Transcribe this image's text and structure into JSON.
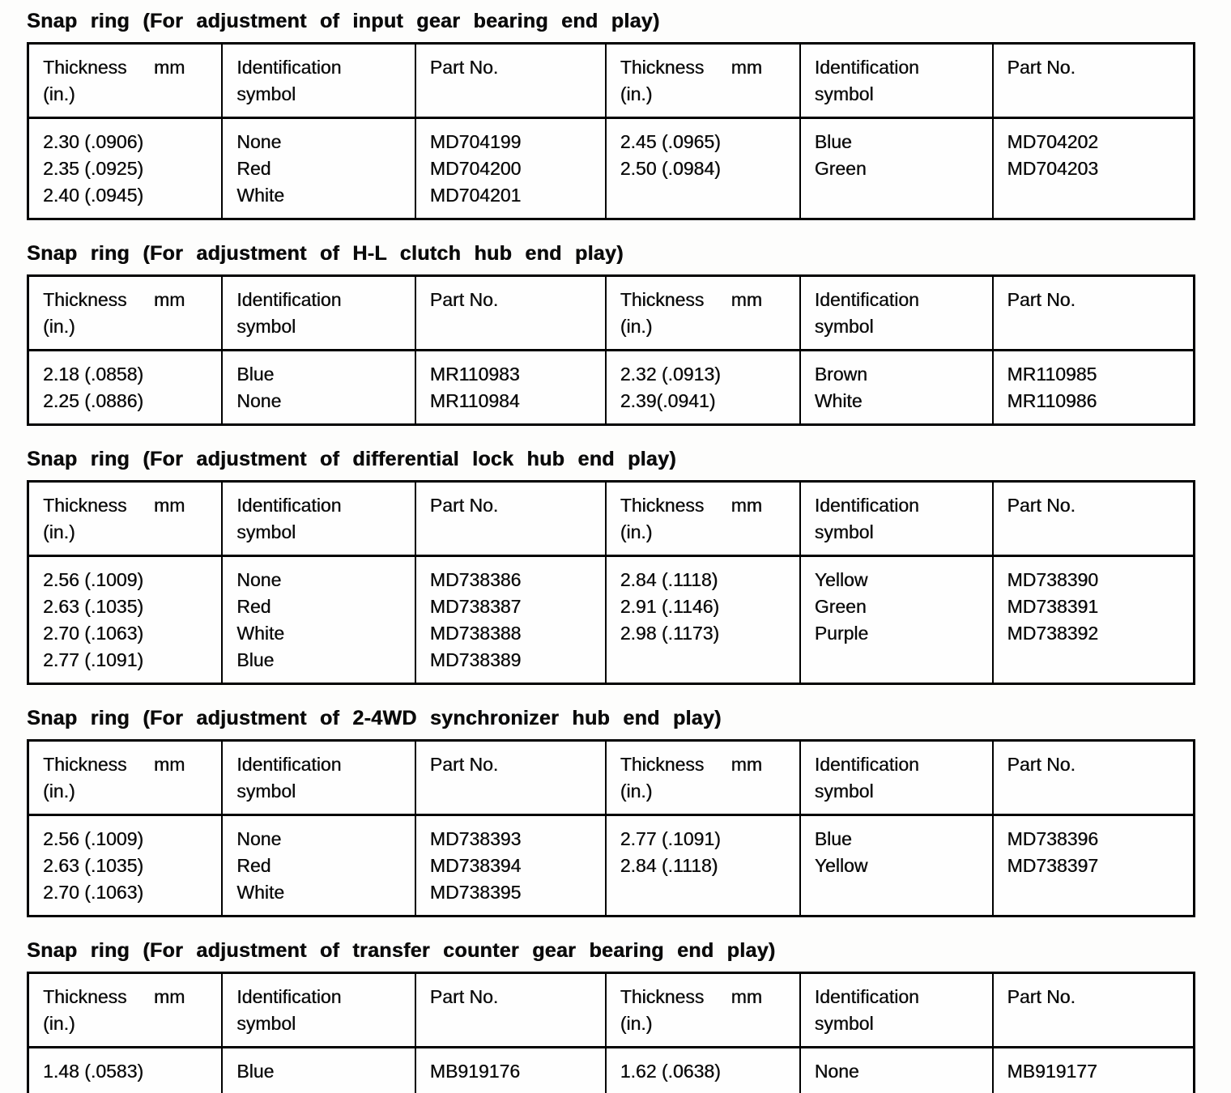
{
  "headers": {
    "thickness": [
      "Thickness mm",
      "(in.)"
    ],
    "symbol": [
      "Identification",
      "symbol"
    ],
    "part": [
      "Part No."
    ]
  },
  "sections": [
    {
      "title": "Snap ring (For adjustment of input gear bearing end play)",
      "left": {
        "thickness": [
          "2.30 (.0906)",
          "2.35 (.0925)",
          "2.40 (.0945)"
        ],
        "symbol": [
          "None",
          "Red",
          "White"
        ],
        "part": [
          "MD704199",
          "MD704200",
          "MD704201"
        ]
      },
      "right": {
        "thickness": [
          "2.45 (.0965)",
          "2.50 (.0984)"
        ],
        "symbol": [
          "Blue",
          "Green"
        ],
        "part": [
          "MD704202",
          "MD704203"
        ]
      }
    },
    {
      "title": "Snap ring (For adjustment of H-L clutch hub end play)",
      "left": {
        "thickness": [
          "2.18 (.0858)",
          "2.25 (.0886)"
        ],
        "symbol": [
          "Blue",
          "None"
        ],
        "part": [
          "MR110983",
          "MR110984"
        ]
      },
      "right": {
        "thickness": [
          "2.32 (.0913)",
          "2.39(.0941)"
        ],
        "symbol": [
          "Brown",
          "White"
        ],
        "part": [
          "MR110985",
          "MR110986"
        ]
      }
    },
    {
      "title": "Snap ring (For adjustment of differential lock hub end play)",
      "left": {
        "thickness": [
          "2.56 (.1009)",
          "2.63 (.1035)",
          "2.70 (.1063)",
          "2.77 (.1091)"
        ],
        "symbol": [
          "None",
          "Red",
          "White",
          "Blue"
        ],
        "part": [
          "MD738386",
          "MD738387",
          "MD738388",
          "MD738389"
        ]
      },
      "right": {
        "thickness": [
          "2.84 (.1118)",
          "2.91 (.1146)",
          "2.98 (.1173)"
        ],
        "symbol": [
          "Yellow",
          "Green",
          "Purple"
        ],
        "part": [
          "MD738390",
          "MD738391",
          "MD738392"
        ]
      }
    },
    {
      "title": "Snap ring (For adjustment of 2-4WD synchronizer hub end play)",
      "left": {
        "thickness": [
          "2.56 (.1009)",
          "2.63 (.1035)",
          "2.70 (.1063)"
        ],
        "symbol": [
          "None",
          "Red",
          "White"
        ],
        "part": [
          "MD738393",
          "MD738394",
          "MD738395"
        ]
      },
      "right": {
        "thickness": [
          "2.77 (.1091)",
          "2.84 (.1118)"
        ],
        "symbol": [
          "Blue",
          "Yellow"
        ],
        "part": [
          "MD738396",
          "MD738397"
        ]
      }
    },
    {
      "title": "Snap ring (For adjustment of transfer counter gear bearing end play)",
      "left": {
        "thickness": [
          "1.48 (.0583)"
        ],
        "symbol": [
          "Blue"
        ],
        "part": [
          "MB919176"
        ]
      },
      "right": {
        "thickness": [
          "1.62 (.0638)"
        ],
        "symbol": [
          "None"
        ],
        "part": [
          "MB919177"
        ]
      }
    }
  ]
}
